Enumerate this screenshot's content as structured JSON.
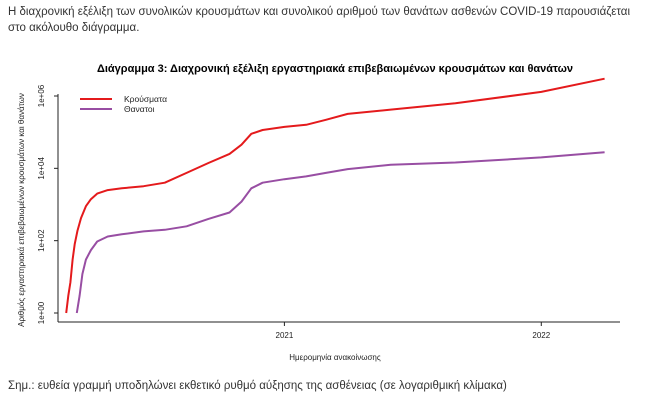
{
  "intro": "Η διαχρονική εξέλιξη των συνολικών κρουσμάτων και συνολικού αριθμού των θανάτων ασθενών COVID-19 παρουσιάζεται στο ακόλουθο διάγραμμα.",
  "note": "Σημ.: ευθεία γραμμή υποδηλώνει εκθετικό ρυθμό αύξησης της ασθένειας (σε λογαριθμική κλίμακα)",
  "chart_data": {
    "type": "line",
    "title": "Διάγραμμα 3: Διαχρονική εξέλιξη εργαστηριακά επιβεβαιωμένων κρουσμάτων και θανάτων",
    "xlabel": "Ημερομηνία ανακοίνωσης",
    "ylabel": "Αριθμός εργαστηριακά επιβεβαιωμένων κρουσμάτων και θανάτων",
    "yscale": "log10",
    "ylim": [
      1,
      1000000
    ],
    "yticks": [
      1,
      100,
      10000,
      1000000
    ],
    "ytick_labels": [
      "1e+00",
      "1e+02",
      "1e+04",
      "1e+06"
    ],
    "xlim": [
      "2020-02-20",
      "2022-04-20"
    ],
    "xticks": [
      "2021-01-01",
      "2022-01-01"
    ],
    "xtick_labels": [
      "2021",
      "2022"
    ],
    "legend_position": "top-left",
    "series": [
      {
        "name": "Κρούσματα",
        "color": "#e41a1c",
        "points": [
          [
            "2020-02-26",
            1
          ],
          [
            "2020-02-29",
            3
          ],
          [
            "2020-03-03",
            7
          ],
          [
            "2020-03-06",
            30
          ],
          [
            "2020-03-09",
            80
          ],
          [
            "2020-03-13",
            190
          ],
          [
            "2020-03-18",
            420
          ],
          [
            "2020-03-25",
            900
          ],
          [
            "2020-04-01",
            1400
          ],
          [
            "2020-04-10",
            2000
          ],
          [
            "2020-04-25",
            2500
          ],
          [
            "2020-05-15",
            2800
          ],
          [
            "2020-06-15",
            3200
          ],
          [
            "2020-07-15",
            4000
          ],
          [
            "2020-08-15",
            7500
          ],
          [
            "2020-09-15",
            14000
          ],
          [
            "2020-10-15",
            25000
          ],
          [
            "2020-11-01",
            45000
          ],
          [
            "2020-11-15",
            90000
          ],
          [
            "2020-12-01",
            115000
          ],
          [
            "2021-01-01",
            140000
          ],
          [
            "2021-02-01",
            160000
          ],
          [
            "2021-03-01",
            220000
          ],
          [
            "2021-04-01",
            320000
          ],
          [
            "2021-06-01",
            420000
          ],
          [
            "2021-09-01",
            630000
          ],
          [
            "2022-01-01",
            1300000
          ],
          [
            "2022-04-01",
            3000000
          ]
        ]
      },
      {
        "name": "Θανατοι",
        "color": "#984ea3",
        "points": [
          [
            "2020-03-12",
            1
          ],
          [
            "2020-03-16",
            3
          ],
          [
            "2020-03-20",
            12
          ],
          [
            "2020-03-25",
            30
          ],
          [
            "2020-04-01",
            55
          ],
          [
            "2020-04-10",
            95
          ],
          [
            "2020-04-25",
            130
          ],
          [
            "2020-05-15",
            150
          ],
          [
            "2020-06-15",
            180
          ],
          [
            "2020-07-15",
            200
          ],
          [
            "2020-08-15",
            250
          ],
          [
            "2020-09-15",
            400
          ],
          [
            "2020-10-15",
            600
          ],
          [
            "2020-11-01",
            1200
          ],
          [
            "2020-11-15",
            2800
          ],
          [
            "2020-12-01",
            4000
          ],
          [
            "2021-01-01",
            5000
          ],
          [
            "2021-02-01",
            6000
          ],
          [
            "2021-03-01",
            7500
          ],
          [
            "2021-04-01",
            9500
          ],
          [
            "2021-06-01",
            12500
          ],
          [
            "2021-09-01",
            14500
          ],
          [
            "2022-01-01",
            20000
          ],
          [
            "2022-04-01",
            28000
          ]
        ]
      }
    ]
  }
}
